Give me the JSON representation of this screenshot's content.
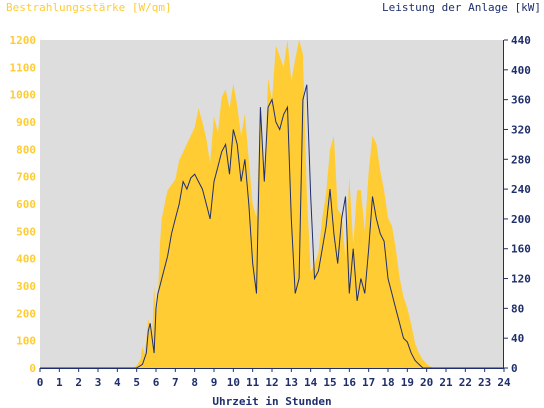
{
  "chart_data": {
    "type": "area",
    "left_axis_title": "Bestrahlungsstärke [W/qm]",
    "right_axis_title": "Leistung der Anlage [kW]",
    "xlabel": "Uhrzeit in Stunden",
    "x_range": [
      0,
      24
    ],
    "x_ticks": [
      "0",
      "1",
      "2",
      "3",
      "4",
      "5",
      "6",
      "7",
      "8",
      "9",
      "10",
      "11",
      "12",
      "13",
      "14",
      "15",
      "16",
      "17",
      "18",
      "19",
      "20",
      "21",
      "22",
      "23",
      "24"
    ],
    "left_range": [
      0,
      1200
    ],
    "left_ticks": [
      "0",
      "100",
      "200",
      "300",
      "400",
      "500",
      "600",
      "700",
      "800",
      "900",
      "1000",
      "1100",
      "1200"
    ],
    "right_range": [
      0,
      440
    ],
    "right_ticks": [
      "0",
      "40",
      "80",
      "120",
      "160",
      "200",
      "240",
      "280",
      "320",
      "360",
      "400",
      "440"
    ],
    "colors": {
      "plot_bg": "#dddddd",
      "irradiance_fill": "#ffcc33",
      "power_line": "#1f2f6b",
      "left_text": "#ffcc33",
      "right_text": "#1f2f6b",
      "tick_text": "#1f2f6b",
      "axis": "#1f2f6b"
    },
    "series": [
      {
        "type": "area",
        "axis": "left",
        "x": [
          0,
          4.9,
          5.0,
          5.2,
          5.3,
          5.4,
          5.5,
          5.6,
          5.7,
          5.8,
          5.9,
          6.0,
          6.1,
          6.2,
          6.3,
          6.4,
          6.5,
          6.6,
          6.7,
          6.8,
          6.9,
          7.0,
          7.2,
          7.4,
          7.6,
          7.8,
          8.0,
          8.2,
          8.4,
          8.6,
          8.8,
          9.0,
          9.2,
          9.4,
          9.6,
          9.8,
          10.0,
          10.2,
          10.4,
          10.6,
          10.8,
          11.0,
          11.2,
          11.4,
          11.6,
          11.8,
          12.0,
          12.2,
          12.4,
          12.6,
          12.8,
          13.0,
          13.2,
          13.4,
          13.6,
          13.8,
          14.0,
          14.2,
          14.4,
          14.6,
          14.8,
          15.0,
          15.2,
          15.4,
          15.6,
          15.8,
          16.0,
          16.2,
          16.4,
          16.6,
          16.8,
          17.0,
          17.2,
          17.4,
          17.6,
          17.8,
          18.0,
          18.2,
          18.4,
          18.6,
          18.8,
          19.0,
          19.2,
          19.4,
          19.6,
          19.8,
          20.0,
          20.2,
          20.4,
          24
        ],
        "y": [
          0,
          0,
          10,
          30,
          80,
          50,
          100,
          180,
          150,
          110,
          300,
          190,
          250,
          450,
          550,
          580,
          620,
          650,
          660,
          670,
          680,
          690,
          760,
          790,
          820,
          850,
          880,
          950,
          900,
          840,
          750,
          920,
          860,
          990,
          1020,
          950,
          1040,
          960,
          850,
          930,
          760,
          600,
          550,
          960,
          700,
          1060,
          980,
          1180,
          1140,
          1100,
          1200,
          1050,
          1130,
          1200,
          1150,
          640,
          350,
          380,
          420,
          550,
          640,
          800,
          850,
          580,
          560,
          400,
          700,
          450,
          650,
          650,
          500,
          720,
          850,
          820,
          720,
          650,
          550,
          520,
          440,
          330,
          260,
          220,
          160,
          90,
          55,
          30,
          15,
          5,
          0,
          0
        ]
      },
      {
        "type": "line",
        "axis": "right",
        "x": [
          0,
          5.0,
          5.3,
          5.5,
          5.6,
          5.7,
          5.8,
          5.9,
          6.0,
          6.1,
          6.2,
          6.4,
          6.6,
          6.8,
          7.0,
          7.2,
          7.4,
          7.6,
          7.8,
          8.0,
          8.2,
          8.4,
          8.6,
          8.8,
          9.0,
          9.2,
          9.4,
          9.6,
          9.8,
          10.0,
          10.2,
          10.4,
          10.6,
          10.8,
          11.0,
          11.2,
          11.4,
          11.6,
          11.8,
          12.0,
          12.2,
          12.4,
          12.6,
          12.8,
          13.0,
          13.2,
          13.4,
          13.6,
          13.8,
          14.0,
          14.2,
          14.4,
          14.6,
          14.8,
          15.0,
          15.2,
          15.4,
          15.6,
          15.8,
          16.0,
          16.2,
          16.4,
          16.6,
          16.8,
          17.0,
          17.2,
          17.4,
          17.6,
          17.8,
          18.0,
          18.2,
          18.4,
          18.6,
          18.8,
          19.0,
          19.2,
          19.4,
          19.6,
          19.8,
          20.0,
          20.2,
          24
        ],
        "y": [
          0,
          0,
          5,
          20,
          50,
          60,
          40,
          20,
          80,
          100,
          110,
          130,
          150,
          180,
          200,
          220,
          250,
          240,
          255,
          260,
          250,
          240,
          220,
          200,
          250,
          270,
          290,
          300,
          260,
          320,
          300,
          250,
          280,
          220,
          140,
          100,
          350,
          250,
          350,
          360,
          330,
          320,
          340,
          350,
          200,
          100,
          120,
          360,
          380,
          230,
          120,
          130,
          160,
          190,
          240,
          180,
          140,
          200,
          230,
          100,
          160,
          90,
          120,
          100,
          160,
          230,
          200,
          180,
          170,
          120,
          100,
          80,
          60,
          40,
          35,
          20,
          10,
          5,
          0,
          0,
          0,
          0
        ]
      }
    ]
  }
}
